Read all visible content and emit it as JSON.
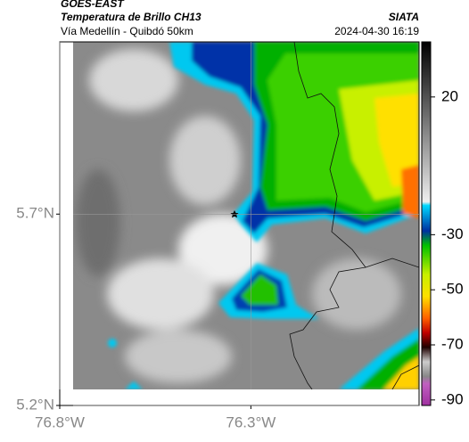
{
  "header": {
    "source": "GOES-EAST",
    "title": "Temperatura de Brillo CH13",
    "subtitle": "Vía Medellín - Quibdó 50km",
    "credit": "SIATA",
    "timestamp": "2024-04-30 16:19"
  },
  "map": {
    "xlim": [
      -76.8,
      -75.86
    ],
    "ylim": [
      5.2,
      6.15
    ],
    "xticks": [
      {
        "value": -76.8,
        "label": "76.8°W"
      },
      {
        "value": -76.3,
        "label": "76.3°W"
      }
    ],
    "yticks": [
      {
        "value": 5.7,
        "label": "5.7°N"
      },
      {
        "value": 5.2,
        "label": "5.2°N"
      }
    ],
    "grid": true
  },
  "colorbar": {
    "lim": [
      -92,
      40
    ],
    "ticks": [
      20,
      -30,
      -50,
      -70,
      -90
    ]
  }
}
